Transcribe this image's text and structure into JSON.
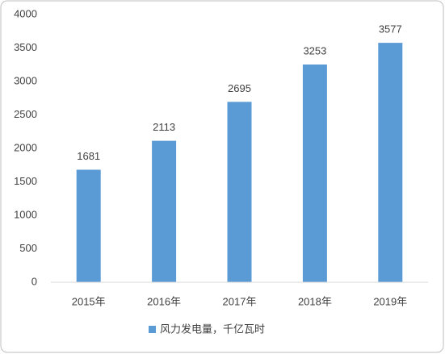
{
  "chart_data": {
    "type": "bar",
    "categories": [
      "2015年",
      "2016年",
      "2017年",
      "2018年",
      "2019年"
    ],
    "series": [
      {
        "name": "风力发电量，千亿瓦时",
        "color": "#5b9bd5",
        "values": [
          1681,
          2113,
          2695,
          3253,
          3577
        ]
      }
    ],
    "ylim": [
      0,
      4000
    ],
    "yticks": [
      0,
      500,
      1000,
      1500,
      2000,
      2500,
      3000,
      3500,
      4000
    ],
    "grid": false,
    "data_labels": true,
    "legend": "bottom"
  }
}
